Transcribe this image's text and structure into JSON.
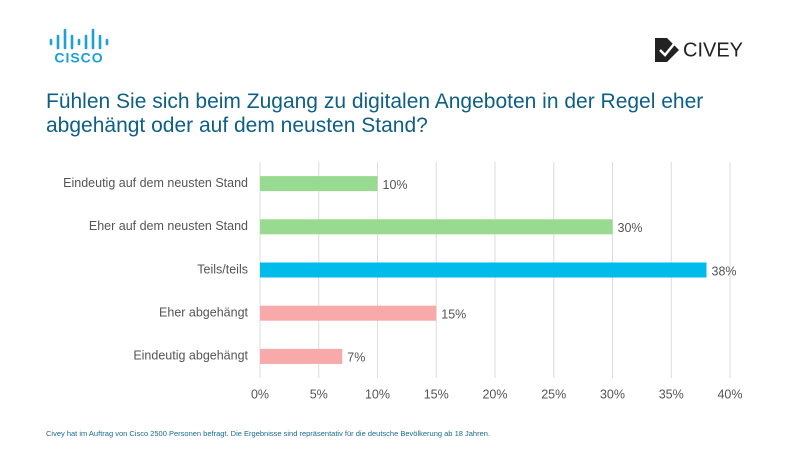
{
  "brand": {
    "left_logo": "CISCO",
    "right_logo": "CIVEY"
  },
  "chart_data": {
    "type": "hbar",
    "title": "Fühlen Sie sich beim Zugang zu digitalen Angeboten in der Regel eher abgehängt oder auf dem neusten Stand?",
    "categories": [
      "Eindeutig auf dem neusten Stand",
      "Eher auf dem neusten Stand",
      "Teils/teils",
      "Eher abgehängt",
      "Eindeutig abgehängt"
    ],
    "values": [
      10,
      30,
      38,
      15,
      7
    ],
    "value_labels": [
      "10%",
      "30%",
      "38%",
      "15%",
      "7%"
    ],
    "colors": [
      "#98da8f",
      "#98da8f",
      "#00bceb",
      "#f8a9a9",
      "#f8a9a9"
    ],
    "xlim": [
      0,
      40
    ],
    "xticks": [
      {
        "value": 0,
        "label": "0%"
      },
      {
        "value": 5,
        "label": "5%"
      },
      {
        "value": 10,
        "label": "10%"
      },
      {
        "value": 15,
        "label": "15%"
      },
      {
        "value": 20,
        "label": "20%"
      },
      {
        "value": 25,
        "label": "25%"
      },
      {
        "value": 30,
        "label": "30%"
      },
      {
        "value": 35,
        "label": "35%"
      },
      {
        "value": 40,
        "label": "40%"
      }
    ],
    "grid": true
  },
  "footnote": "Civey hat im Auftrag von Cisco 2500 Personen befragt. Die Ergebnisse sind repräsentativ für die deutsche Bevölkerung ab 18 Jahren."
}
